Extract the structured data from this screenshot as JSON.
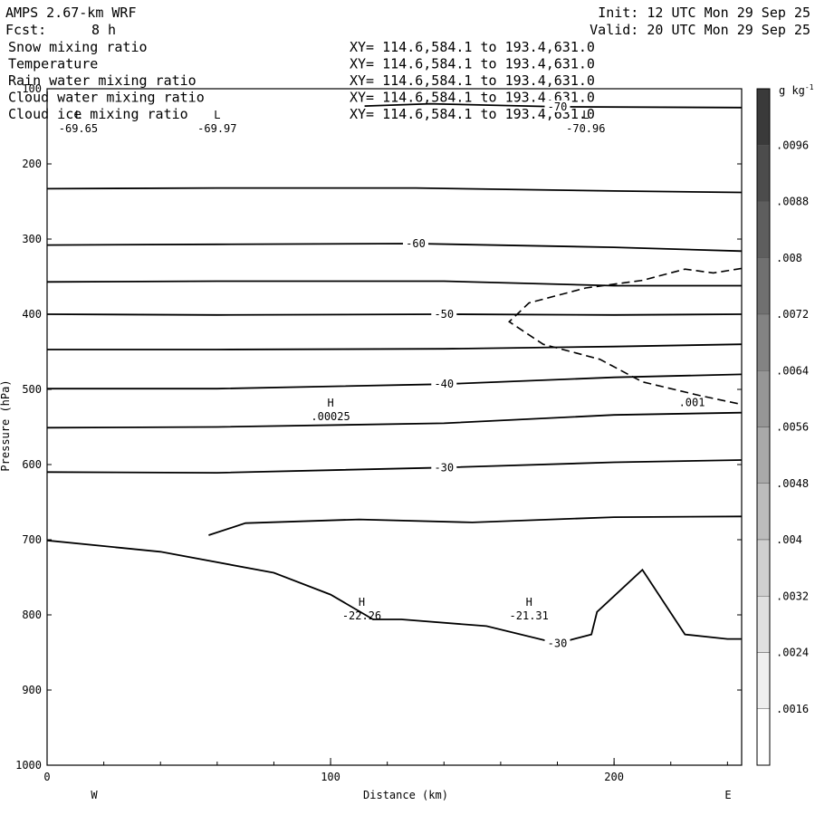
{
  "header": {
    "model": "AMPS 2.67-km WRF",
    "init": "Init: 12 UTC Mon 29 Sep 25",
    "fcst_label": "Fcst:",
    "fcst_value": "8 h",
    "valid": "Valid: 20 UTC Mon 29 Sep 25"
  },
  "fields": [
    {
      "name": "Snow mixing ratio",
      "xy": "XY= 114.6,584.1 to 193.4,631.0",
      "color": "#000000"
    },
    {
      "name": "Temperature",
      "xy": "XY= 114.6,584.1 to 193.4,631.0",
      "color": "#000000"
    },
    {
      "name": "Rain water mixing ratio",
      "xy": "XY= 114.6,584.1 to 193.4,631.0",
      "color": "#dd0000"
    },
    {
      "name": "Cloud water mixing ratio",
      "xy": "XY= 114.6,584.1 to 193.4,631.0",
      "color": "#0000cc"
    },
    {
      "name": "Cloud ice mixing ratio",
      "xy": "XY= 114.6,584.1 to 193.4,631.0",
      "color": "#000000"
    }
  ],
  "chart_data": {
    "type": "contour cross-section",
    "xlabel": "Distance (km)",
    "ylabel": "Pressure (hPa)",
    "xlim": [
      0,
      245
    ],
    "ylim": [
      1000,
      100
    ],
    "x_ticks": [
      "0",
      "100",
      "200"
    ],
    "y_ticks": [
      "100",
      "200",
      "300",
      "400",
      "500",
      "600",
      "700",
      "800",
      "900",
      "1000"
    ],
    "west_label": "W",
    "east_label": "E",
    "colorbar": {
      "unit": "g kg",
      "unit_exp": "-1",
      "labels": [
        ".0096",
        ".0088",
        ".008",
        ".0072",
        ".0064",
        ".0056",
        ".0048",
        ".004",
        ".0032",
        ".0024",
        ".0016"
      ],
      "colors": [
        "#3a3a3a",
        "#4c4c4c",
        "#5e5e5e",
        "#707070",
        "#838383",
        "#969696",
        "#a9a9a9",
        "#bcbcbc",
        "#cfcfcf",
        "#e0e0e0",
        "#efefef",
        "#ffffff"
      ]
    },
    "temperature_contours": [
      {
        "level": "-70",
        "points": [
          [
            112,
            123
          ],
          [
            135,
            120
          ],
          [
            180,
            124
          ],
          [
            245,
            125
          ]
        ]
      },
      {
        "level": "",
        "points": [
          [
            0,
            233
          ],
          [
            60,
            232
          ],
          [
            130,
            232
          ],
          [
            200,
            236
          ],
          [
            245,
            238
          ]
        ]
      },
      {
        "level": "-60",
        "points": [
          [
            0,
            308
          ],
          [
            60,
            307
          ],
          [
            130,
            306
          ],
          [
            200,
            311
          ],
          [
            245,
            316
          ]
        ]
      },
      {
        "level": "",
        "points": [
          [
            0,
            357
          ],
          [
            60,
            356
          ],
          [
            140,
            356
          ],
          [
            200,
            362
          ],
          [
            245,
            362
          ]
        ]
      },
      {
        "level": "-50",
        "points": [
          [
            0,
            400
          ],
          [
            60,
            401
          ],
          [
            140,
            400
          ],
          [
            200,
            401
          ],
          [
            245,
            400
          ]
        ]
      },
      {
        "level": "",
        "points": [
          [
            0,
            447
          ],
          [
            60,
            447
          ],
          [
            140,
            446
          ],
          [
            200,
            443
          ],
          [
            245,
            440
          ]
        ]
      },
      {
        "level": "-40",
        "points": [
          [
            0,
            499
          ],
          [
            60,
            499
          ],
          [
            140,
            493
          ],
          [
            200,
            484
          ],
          [
            245,
            480
          ]
        ]
      },
      {
        "level": "",
        "points": [
          [
            0,
            551
          ],
          [
            60,
            550
          ],
          [
            140,
            545
          ],
          [
            200,
            534
          ],
          [
            245,
            531
          ]
        ]
      },
      {
        "level": "-30",
        "points": [
          [
            0,
            610
          ],
          [
            60,
            611
          ],
          [
            140,
            604
          ],
          [
            200,
            597
          ],
          [
            245,
            594
          ]
        ]
      },
      {
        "level": "",
        "points": [
          [
            57,
            694
          ],
          [
            70,
            678
          ],
          [
            110,
            673
          ],
          [
            150,
            677
          ],
          [
            200,
            670
          ],
          [
            245,
            669
          ]
        ]
      },
      {
        "level": "-30",
        "points": [
          [
            0,
            701
          ],
          [
            40,
            716
          ],
          [
            80,
            744
          ],
          [
            100,
            773
          ],
          [
            115,
            806
          ],
          [
            125,
            806
          ],
          [
            155,
            815
          ],
          [
            180,
            838
          ],
          [
            192,
            826
          ],
          [
            194,
            796
          ],
          [
            210,
            740
          ],
          [
            225,
            826
          ],
          [
            240,
            832
          ],
          [
            245,
            832
          ]
        ]
      }
    ],
    "extremes": [
      {
        "label": "L",
        "value": "-69.65",
        "x": 11,
        "y": 152
      },
      {
        "label": "L",
        "value": "-69.97",
        "x": 60,
        "y": 152
      },
      {
        "label": "L",
        "value": "-70.96",
        "x": 190,
        "y": 152
      },
      {
        "label": "H",
        "value": "-22.26",
        "x": 111,
        "y": 800
      },
      {
        "label": "H",
        "value": "-21.31",
        "x": 170,
        "y": 800
      }
    ],
    "ice_contour": {
      "level": ".001",
      "points": [
        [
          245,
          339
        ],
        [
          235,
          345
        ],
        [
          225,
          340
        ],
        [
          210,
          355
        ],
        [
          190,
          365
        ],
        [
          170,
          385
        ],
        [
          163,
          410
        ],
        [
          175,
          440
        ],
        [
          195,
          460
        ],
        [
          210,
          490
        ],
        [
          230,
          508
        ],
        [
          245,
          520
        ]
      ]
    },
    "ice_max": {
      "label": "H",
      "value": ".00025",
      "x": 100,
      "y": 535
    }
  }
}
